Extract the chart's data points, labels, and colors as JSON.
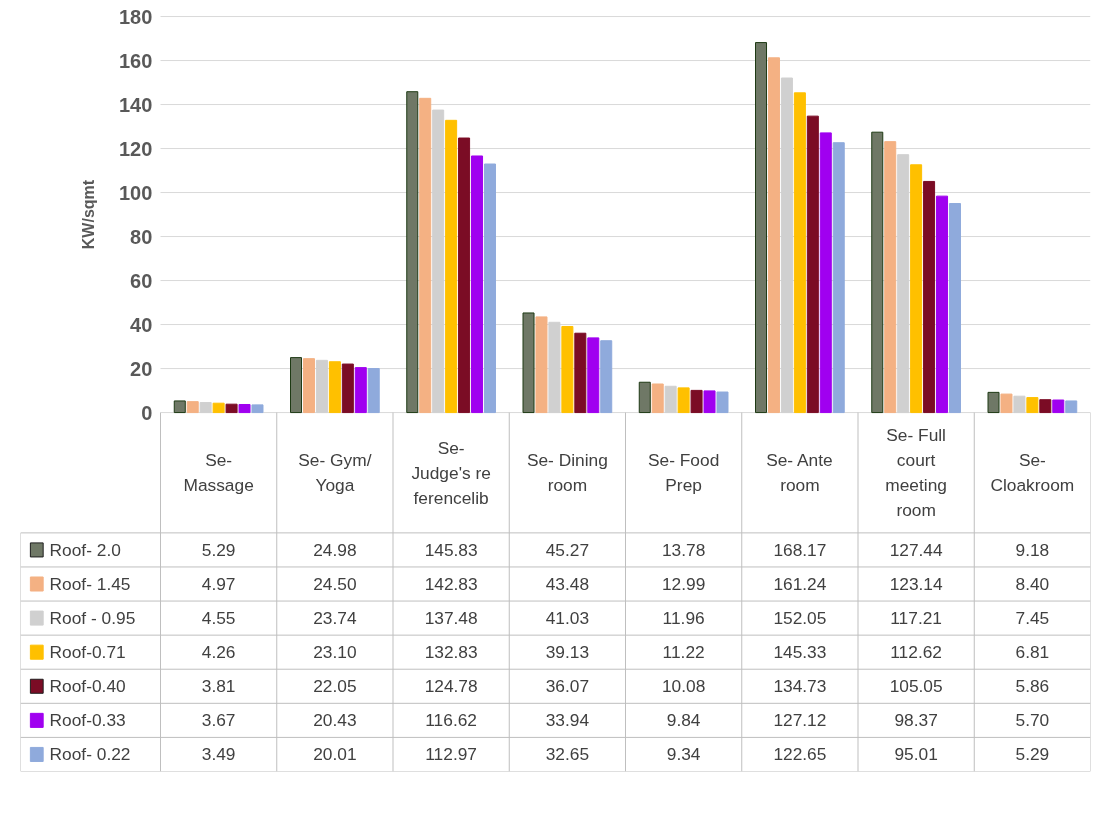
{
  "chart_data": {
    "type": "bar",
    "ylabel": "KW/sqmt",
    "categories": [
      "Se- Massage",
      "Se- Gym/ Yoga",
      "Se- Judge's referencelib",
      "Se- Dining room",
      "Se- Food Prep",
      "Se- Ante room",
      "Se- Full court meeting room",
      "Se- Cloakroom"
    ],
    "series": [
      {
        "name": "Roof- 2.0",
        "color": "#6f7866",
        "values": [
          5.29,
          24.98,
          145.83,
          45.27,
          13.78,
          168.17,
          127.44,
          9.18
        ],
        "value_labels": [
          "5.29",
          "24.98",
          "145.83",
          "45.27",
          "13.78",
          "168.17",
          "127.44",
          "9.18"
        ]
      },
      {
        "name": "Roof- 1.45",
        "color": "#f4b183",
        "values": [
          4.97,
          24.5,
          142.83,
          43.48,
          12.99,
          161.24,
          123.14,
          8.4
        ],
        "value_labels": [
          "4.97",
          "24.50",
          "142.83",
          "43.48",
          "12.99",
          "161.24",
          "123.14",
          "8.40"
        ]
      },
      {
        "name": "Roof - 0.95",
        "color": "#d0d0d0",
        "values": [
          4.55,
          23.74,
          137.48,
          41.03,
          11.96,
          152.05,
          117.21,
          7.45
        ],
        "value_labels": [
          "4.55",
          "23.74",
          "137.48",
          "41.03",
          "11.96",
          "152.05",
          "117.21",
          "7.45"
        ]
      },
      {
        "name": "Roof-0.71",
        "color": "#ffc000",
        "values": [
          4.26,
          23.1,
          132.83,
          39.13,
          11.22,
          145.33,
          112.62,
          6.81
        ],
        "value_labels": [
          "4.26",
          "23.10",
          "132.83",
          "39.13",
          "11.22",
          "145.33",
          "112.62",
          "6.81"
        ]
      },
      {
        "name": "Roof-0.40",
        "color": "#7b0c25",
        "values": [
          3.81,
          22.05,
          124.78,
          36.07,
          10.08,
          134.73,
          105.05,
          5.86
        ],
        "value_labels": [
          "3.81",
          "22.05",
          "124.78",
          "36.07",
          "10.08",
          "134.73",
          "105.05",
          "5.86"
        ]
      },
      {
        "name": "Roof-0.33",
        "color": "#a000f0",
        "values": [
          3.67,
          20.43,
          116.62,
          33.94,
          9.84,
          127.12,
          98.37,
          5.7
        ],
        "value_labels": [
          "3.67",
          "20.43",
          "116.62",
          "33.94",
          "9.84",
          "127.12",
          "98.37",
          "5.70"
        ]
      },
      {
        "name": "Roof- 0.22",
        "color": "#8faadc",
        "values": [
          3.49,
          20.01,
          112.97,
          32.65,
          9.34,
          122.65,
          95.01,
          5.29
        ],
        "value_labels": [
          "3.49",
          "20.01",
          "112.97",
          "32.65",
          "9.34",
          "122.65",
          "95.01",
          "5.29"
        ]
      }
    ],
    "ylim": [
      0,
      180
    ],
    "yticks": [
      0,
      20,
      40,
      60,
      80,
      100,
      120,
      140,
      160,
      180
    ],
    "grid": "y",
    "legend": "bottom"
  }
}
